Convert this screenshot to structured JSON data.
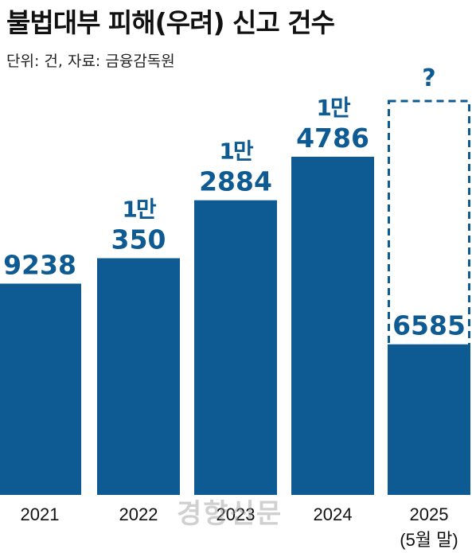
{
  "chart_data": {
    "type": "bar",
    "title": "불법대부 피해(우려) 신고 건수",
    "subtitle": "단위: 건, 자료: 금융감독원",
    "categories": [
      "2021",
      "2022",
      "2023",
      "2024",
      "2025"
    ],
    "category_notes": [
      "",
      "",
      "",
      "",
      "(5월 말)"
    ],
    "values": [
      9238,
      10350,
      12884,
      14786,
      6585
    ],
    "value_labels": [
      [
        "9238"
      ],
      [
        "1만",
        "350"
      ],
      [
        "1만",
        "2884"
      ],
      [
        "1만",
        "4786"
      ],
      [
        "6585"
      ]
    ],
    "projected_label": "?",
    "bar_color": "#0d5b92",
    "projected_outline_style": "dashed",
    "xlabel": "",
    "ylabel": "",
    "grid": false
  },
  "watermark": "경향신문"
}
